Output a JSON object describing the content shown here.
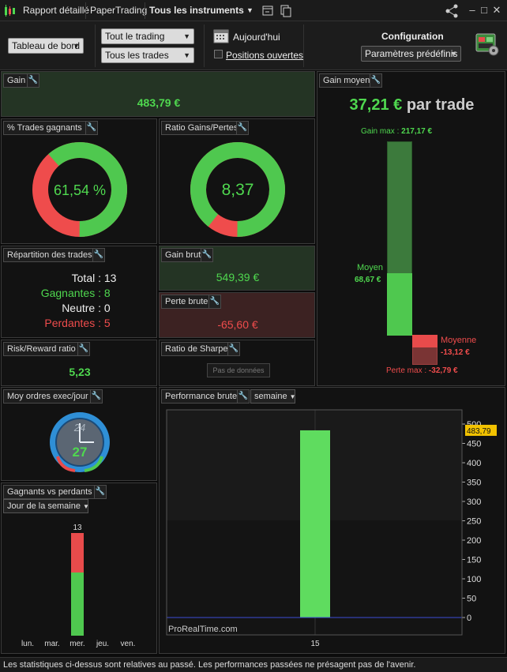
{
  "titlebar": {
    "tabs": [
      "Rapport détaillé",
      "PaperTrading",
      "Tous les instruments"
    ]
  },
  "toolbar": {
    "dashboard": "Tableau de bord",
    "trading_filter": "Tout le trading",
    "trades_filter": "Tous les trades",
    "today": "Aujourd'hui",
    "open_positions": "Positions ouvertes",
    "config_title": "Configuration",
    "presets": "Paramètres prédéfinis"
  },
  "panels": {
    "gain": {
      "title": "Gain",
      "value": "483,79 €"
    },
    "win_pct": {
      "title": "% Trades gagnants",
      "value": "61,54 %",
      "fraction": 0.6154
    },
    "ratio": {
      "title": "Ratio Gains/Pertes",
      "value": "8,37",
      "fraction": 0.893
    },
    "repartition": {
      "title": "Répartition des trades",
      "total_label": "Total :",
      "total": "13",
      "win_label": "Gagnantes :",
      "win": "8",
      "neutral_label": "Neutre :",
      "neutral": "0",
      "loss_label": "Perdantes :",
      "loss": "5"
    },
    "gross_gain": {
      "title": "Gain brut",
      "value": "549,39 €"
    },
    "gross_loss": {
      "title": "Perte brute",
      "value": "-65,60 €"
    },
    "risk_reward": {
      "title": "Risk/Reward ratio",
      "value": "5,23"
    },
    "sharpe": {
      "title": "Ratio de Sharpe",
      "no_data": "Pas de données"
    },
    "avg_gain": {
      "title": "Gain moyen",
      "value": "37,21 €",
      "per_trade": "par trade",
      "max_label": "Gain max :",
      "max": "217,17 €",
      "avg_label": "Moyen",
      "avg": "68,67 €",
      "loss_avg_label": "Moyenne",
      "loss_avg": "-13,12 €",
      "loss_max_label": "Perte max :",
      "loss_max": "-32,79 €"
    },
    "orders": {
      "title": "Moy ordres exec/jour",
      "clock_top": "24",
      "value": "27"
    },
    "performance": {
      "title": "Performance brute",
      "period": "semaine",
      "watermark": "ProRealTime.com",
      "last_value": "483,79"
    },
    "win_loss": {
      "title": "Gagnants vs perdants",
      "period": "Jour de la semaine",
      "bar_total": "13"
    }
  },
  "chart_data": [
    {
      "type": "bar",
      "categories": [
        "15"
      ],
      "values": [
        483.79
      ],
      "ylim": [
        0,
        500
      ],
      "yticks": [
        0,
        50,
        100,
        150,
        200,
        250,
        300,
        350,
        400,
        450,
        500
      ],
      "colors": {
        "bar": "#5fdc5f",
        "zero_line": "#3b4bd6"
      }
    },
    {
      "type": "bar",
      "categories": [
        "lun.",
        "mar.",
        "mer.",
        "jeu.",
        "ven."
      ],
      "series": [
        {
          "values": [
            0,
            0,
            8,
            0,
            0
          ]
        },
        {
          "values": [
            0,
            0,
            5,
            0,
            0
          ]
        }
      ],
      "colors": {
        "win": "#4fc84f",
        "loss": "#e84b4b"
      }
    }
  ]
}
